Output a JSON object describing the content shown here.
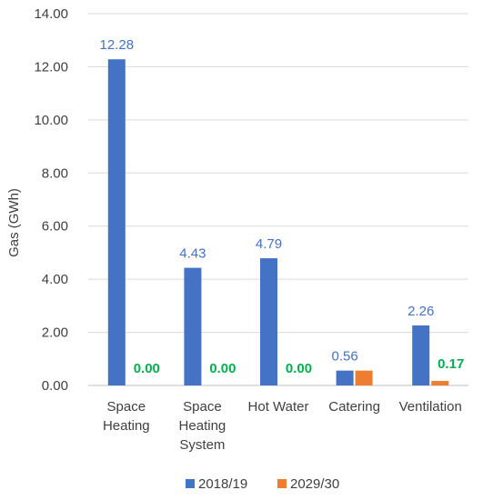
{
  "chart_data": {
    "type": "bar",
    "title": "",
    "xlabel": "",
    "ylabel": "Gas (GWh)",
    "ylim": [
      0,
      14
    ],
    "yticks": [
      "0.00",
      "2.00",
      "4.00",
      "6.00",
      "8.00",
      "10.00",
      "12.00",
      "14.00"
    ],
    "grid": true,
    "legend_position": "bottom",
    "categories": [
      [
        "Space",
        "Heating"
      ],
      [
        "Space",
        "Heating",
        "System"
      ],
      [
        "Hot Water"
      ],
      [
        "Catering"
      ],
      [
        "Ventilation"
      ]
    ],
    "series": [
      {
        "name": "2018/19",
        "color": "#4472C4",
        "values": [
          12.28,
          4.43,
          4.79,
          0.56,
          2.26
        ],
        "labels": [
          "12.28",
          "4.43",
          "4.79",
          "0.56",
          "2.26"
        ],
        "label_color": "#4472C4"
      },
      {
        "name": "2029/30",
        "color": "#ED7D31",
        "values": [
          0.0,
          0.0,
          0.0,
          0.56,
          0.17
        ],
        "labels": [
          "0.00",
          "0.00",
          "0.00",
          "",
          "0.17"
        ],
        "label_color": "#00B050"
      }
    ]
  }
}
